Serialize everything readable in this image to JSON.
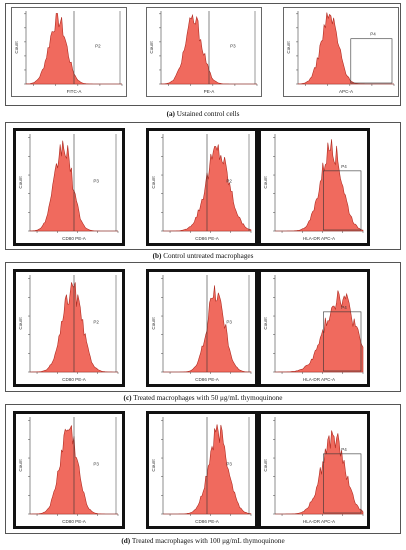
{
  "figure": {
    "panels": [
      {
        "letter": "(a)",
        "caption": "Ustained control cells",
        "charts": [
          {
            "xlabel": "FITC-A",
            "ylabel": "Count",
            "gate": "P2",
            "gate_style": "vline"
          },
          {
            "xlabel": "PE-A",
            "ylabel": "Count",
            "gate": "P3",
            "gate_style": "vline"
          },
          {
            "xlabel": "APC-A",
            "ylabel": "Count",
            "gate": "P4",
            "gate_style": "box"
          }
        ]
      },
      {
        "letter": "(b)",
        "caption": "Control untreated macrophages",
        "charts": [
          {
            "xlabel": "CD80 PE-A",
            "ylabel": "Count",
            "gate": "P3",
            "gate_style": "vline"
          },
          {
            "xlabel": "CD86 PE-A",
            "ylabel": "Count",
            "gate": "P2",
            "gate_style": "vline"
          },
          {
            "xlabel": "HLA-DR APC-A",
            "ylabel": "Count",
            "gate": "P4",
            "gate_style": "box"
          }
        ]
      },
      {
        "letter": "(c)",
        "caption": "Treated macrophages with 50 μg/mL thymoquinone",
        "charts": [
          {
            "xlabel": "CD80 PE-A",
            "ylabel": "Count",
            "gate": "P2",
            "gate_style": "vline"
          },
          {
            "xlabel": "CD86 PE-A",
            "ylabel": "Count",
            "gate": "P3",
            "gate_style": "vline"
          },
          {
            "xlabel": "HLA-DR APC-A",
            "ylabel": "Count",
            "gate": "P4",
            "gate_style": "box"
          }
        ]
      },
      {
        "letter": "(d)",
        "caption": "Treated macrophages with 100 μg/mL thymoquinone",
        "charts": [
          {
            "xlabel": "CD80 PE-A",
            "ylabel": "Count",
            "gate": "P3",
            "gate_style": "vline"
          },
          {
            "xlabel": "CD86 PE-A",
            "ylabel": "Count",
            "gate": "P3",
            "gate_style": "vline"
          },
          {
            "xlabel": "HLA-DR APC-A",
            "ylabel": "Count",
            "gate": "P4",
            "gate_style": "box"
          }
        ]
      }
    ]
  },
  "colors": {
    "fill": "#f06a5e",
    "stroke": "#b02a20",
    "frame": "#111111"
  },
  "chart_data": [
    {
      "type": "area",
      "panel": "a",
      "xlabel": "FITC-A",
      "ylabel": "Count",
      "series": [
        {
          "peak": 0.33,
          "width": 0.09,
          "height": 0.92
        }
      ]
    },
    {
      "type": "area",
      "panel": "a",
      "xlabel": "PE-A",
      "ylabel": "Count",
      "series": [
        {
          "peak": 0.34,
          "width": 0.09,
          "height": 0.9
        }
      ]
    },
    {
      "type": "area",
      "panel": "a",
      "xlabel": "APC-A",
      "ylabel": "Count",
      "series": [
        {
          "peak": 0.33,
          "width": 0.09,
          "height": 0.95
        }
      ]
    },
    {
      "type": "area",
      "panel": "b",
      "xlabel": "CD80 PE-A",
      "ylabel": "Count",
      "series": [
        {
          "peak": 0.38,
          "width": 0.1,
          "height": 0.9
        }
      ]
    },
    {
      "type": "area",
      "panel": "b",
      "xlabel": "CD86 PE-A",
      "ylabel": "Count",
      "series": [
        {
          "peak": 0.62,
          "width": 0.13,
          "height": 0.86
        }
      ]
    },
    {
      "type": "area",
      "panel": "b",
      "xlabel": "HLA-DR APC-A",
      "ylabel": "Count",
      "series": [
        {
          "peak": 0.64,
          "width": 0.12,
          "height": 0.9
        }
      ]
    },
    {
      "type": "area",
      "panel": "c",
      "xlabel": "CD80 PE-A",
      "ylabel": "Count",
      "series": [
        {
          "peak": 0.48,
          "width": 0.11,
          "height": 0.88
        }
      ]
    },
    {
      "type": "area",
      "panel": "c",
      "xlabel": "CD86 PE-A",
      "ylabel": "Count",
      "series": [
        {
          "peak": 0.6,
          "width": 0.1,
          "height": 0.85
        }
      ]
    },
    {
      "type": "area",
      "panel": "c",
      "xlabel": "HLA-DR APC-A",
      "ylabel": "Count",
      "series": [
        {
          "peak": 0.74,
          "width": 0.17,
          "height": 0.82
        }
      ]
    },
    {
      "type": "area",
      "panel": "d",
      "xlabel": "CD80 PE-A",
      "ylabel": "Count",
      "series": [
        {
          "peak": 0.44,
          "width": 0.1,
          "height": 0.9
        }
      ]
    },
    {
      "type": "area",
      "panel": "d",
      "xlabel": "CD86 PE-A",
      "ylabel": "Count",
      "series": [
        {
          "peak": 0.63,
          "width": 0.11,
          "height": 0.88
        }
      ]
    },
    {
      "type": "area",
      "panel": "d",
      "xlabel": "HLA-DR APC-A",
      "ylabel": "Count",
      "series": [
        {
          "peak": 0.66,
          "width": 0.13,
          "height": 0.82
        }
      ]
    }
  ]
}
